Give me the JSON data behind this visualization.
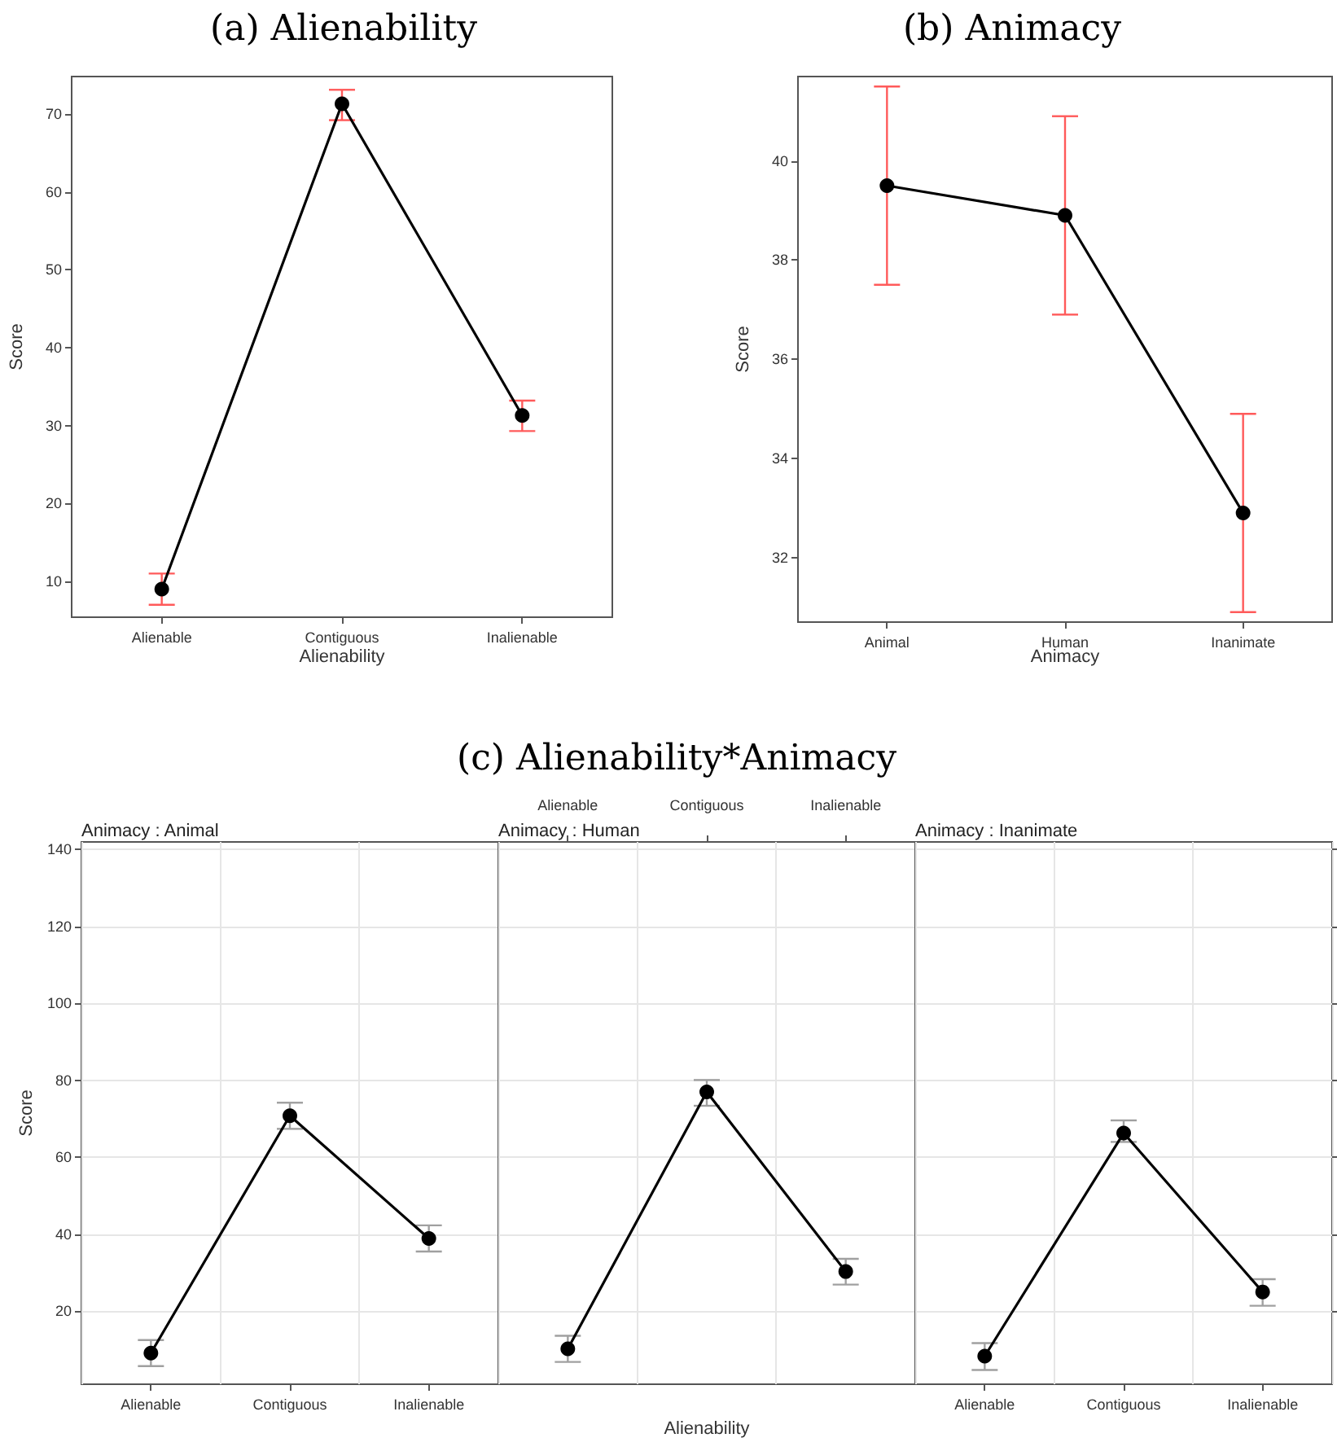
{
  "chart_data": [
    {
      "type": "line",
      "title": "(a) Alienability",
      "xlabel": "Alienability",
      "ylabel": "Score",
      "categories": [
        "Alienable",
        "Contiguous",
        "Inalienable"
      ],
      "values": [
        9.0,
        71.3,
        31.3
      ],
      "color": "#000000",
      "errors": [
        [
          7.0,
          11.0
        ],
        [
          69.2,
          73.1
        ],
        [
          29.3,
          33.2
        ]
      ],
      "ylim": [
        5.4,
        74.8
      ],
      "yticks": [
        10,
        20,
        30,
        40,
        50,
        60,
        70
      ],
      "marker": "circle"
    },
    {
      "type": "line",
      "title": "(b) Animacy",
      "xlabel": "Animacy",
      "ylabel": "Score",
      "categories": [
        "Animal",
        "Human",
        "Inanimate"
      ],
      "values": [
        39.5,
        38.9,
        32.9
      ],
      "color": "#000000",
      "errors": [
        [
          37.5,
          41.5
        ],
        [
          36.9,
          40.9
        ],
        [
          30.9,
          34.9
        ]
      ],
      "ylim": [
        30.7,
        41.7
      ],
      "yticks": [
        32,
        34,
        36,
        38,
        40
      ],
      "marker": "circle"
    },
    {
      "type": "line",
      "subtitle": "Animacy : Animal",
      "ylabel": "Score",
      "categories": [
        "Alienable",
        "Contiguous",
        "Inalienable"
      ],
      "values": [
        9.1,
        70.8,
        38.9
      ],
      "color": "#000000",
      "errors": [
        [
          5.7,
          12.5
        ],
        [
          67.4,
          74.2
        ],
        [
          35.5,
          42.3
        ]
      ],
      "ylim": [
        1,
        142
      ],
      "yticks": [
        20,
        40,
        60,
        80,
        100,
        120,
        140
      ],
      "marker": "circle",
      "grid": true
    },
    {
      "type": "line",
      "title": "(c) Alienability*Animacy",
      "subtitle": "Animacy : Human",
      "xlabel": "Alienability",
      "categories": [
        "Alienable",
        "Contiguous",
        "Inalienable"
      ],
      "values": [
        10.2,
        77.0,
        30.3
      ],
      "color": "#000000",
      "errors": [
        [
          6.8,
          13.6
        ],
        [
          73.4,
          80.1
        ],
        [
          26.9,
          33.6
        ]
      ],
      "ylim": [
        1,
        142
      ],
      "yticks": [
        20,
        40,
        60,
        80,
        100,
        120,
        140
      ],
      "marker": "circle",
      "grid": true,
      "tick_labels": "x"
    },
    {
      "type": "line",
      "subtitle": "Animacy : Inanimate",
      "categories": [
        "Alienable",
        "Contiguous",
        "Inalienable"
      ],
      "values": [
        8.3,
        66.3,
        25.0
      ],
      "color": "#000000",
      "errors": [
        [
          4.7,
          11.7
        ],
        [
          64.0,
          69.6
        ],
        [
          21.4,
          28.3
        ]
      ],
      "ylim": [
        1,
        142
      ],
      "yticks": [
        20,
        40,
        60,
        80,
        100,
        120,
        140
      ],
      "marker": "circle",
      "grid": true,
      "tick_labels": "x"
    }
  ]
}
